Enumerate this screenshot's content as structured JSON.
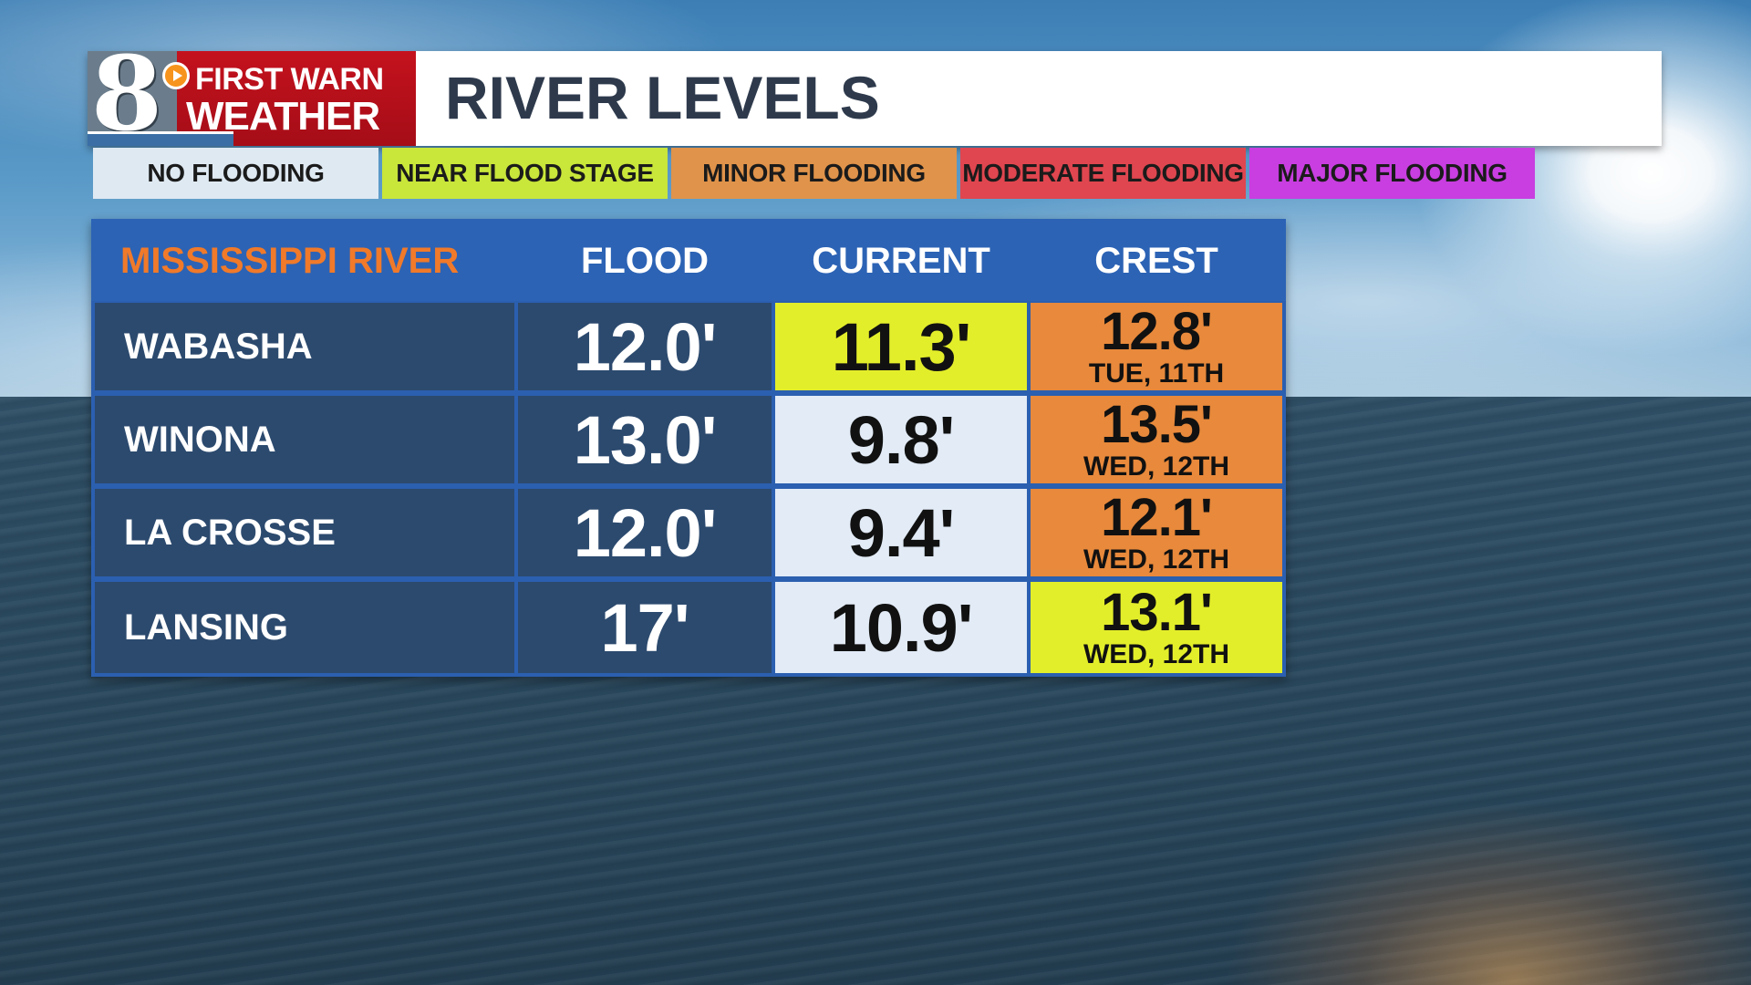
{
  "header": {
    "logo_number": "8",
    "logo_line1": "FIRST WARN",
    "logo_line2": "WEATHER",
    "title": "RIVER LEVELS"
  },
  "legend": [
    {
      "label": "NO FLOODING",
      "color": "#dfe9f2"
    },
    {
      "label": "NEAR FLOOD STAGE",
      "color": "#c9e63a"
    },
    {
      "label": "MINOR FLOODING",
      "color": "#e0934a"
    },
    {
      "label": "MODERATE FLOODING",
      "color": "#e0464f"
    },
    {
      "label": "MAJOR FLOODING",
      "color": "#c83ee0"
    }
  ],
  "table": {
    "headers": {
      "river": "MISSISSIPPI RIVER",
      "flood": "FLOOD",
      "current": "CURRENT",
      "crest": "CREST"
    },
    "rows": [
      {
        "location": "WABASHA",
        "flood": "12.0'",
        "current": "11.3'",
        "current_color": "#e3ee2a",
        "crest": "12.8'",
        "crest_date": "TUE, 11TH",
        "crest_color": "#e8893b"
      },
      {
        "location": "WINONA",
        "flood": "13.0'",
        "current": "9.8'",
        "current_color": "#e2ebf6",
        "crest": "13.5'",
        "crest_date": "WED, 12TH",
        "crest_color": "#e8893b"
      },
      {
        "location": "LA CROSSE",
        "flood": "12.0'",
        "current": "9.4'",
        "current_color": "#e2ebf6",
        "crest": "12.1'",
        "crest_date": "WED, 12TH",
        "crest_color": "#e8893b"
      },
      {
        "location": "LANSING",
        "flood": "17'",
        "current": "10.9'",
        "current_color": "#e2ebf6",
        "crest": "13.1'",
        "crest_date": "WED, 12TH",
        "crest_color": "#e3ee2a"
      }
    ]
  }
}
